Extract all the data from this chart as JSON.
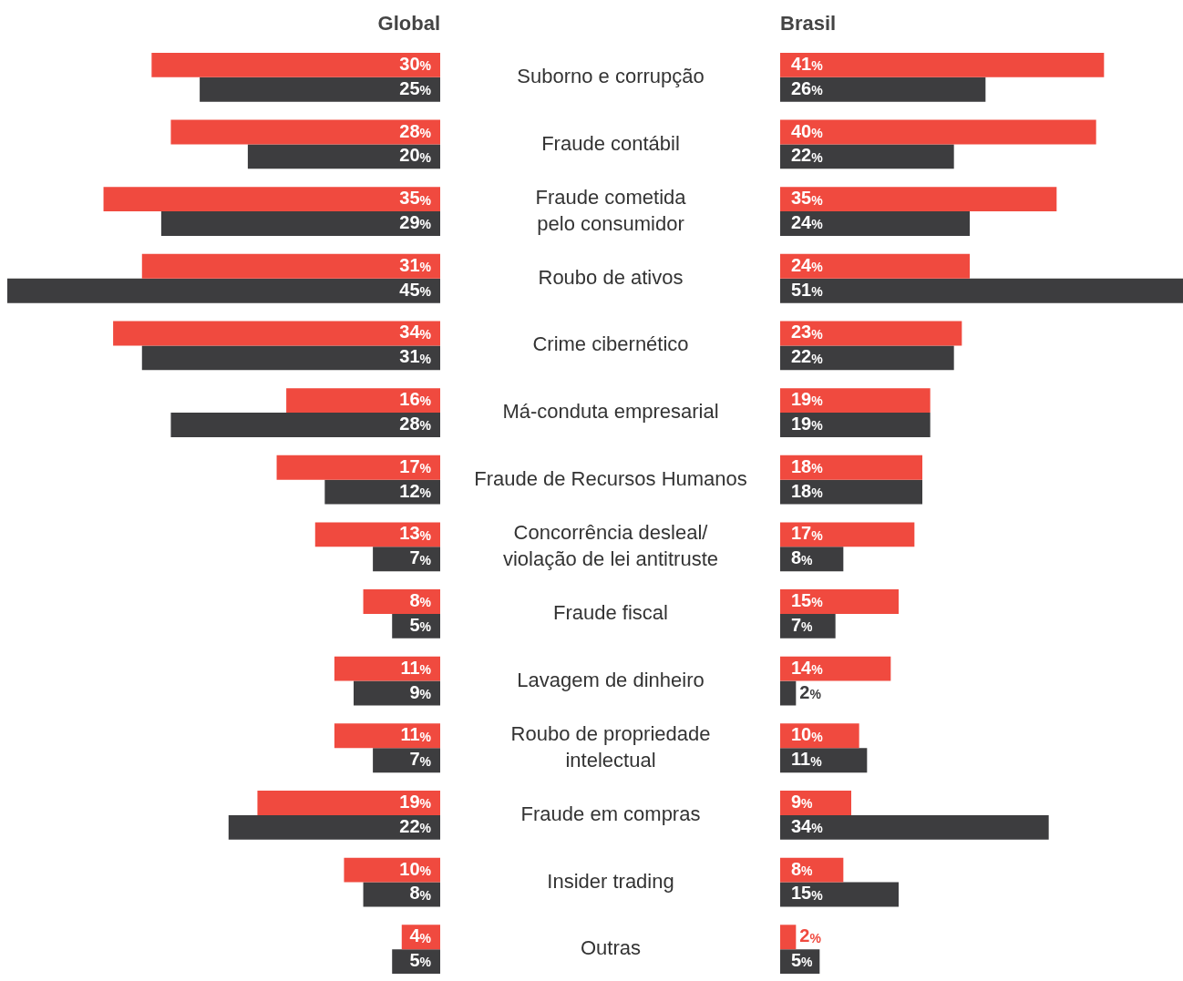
{
  "chart_data": [
    {
      "type": "bar",
      "orientation": "horizontal",
      "title": "Global",
      "tick_labels": "y",
      "xlim": [
        45,
        0
      ],
      "categories": [
        "Suborno e corrupção",
        "Fraude contábil",
        "Fraude cometida\npelo consumidor",
        "Roubo de ativos",
        "Crime cibernético",
        "Má-conduta empresarial",
        "Fraude de Recursos Humanos",
        "Concorrência desleal/\nviolação de lei antitruste",
        "Fraude fiscal",
        "Lavagem de dinheiro",
        "Roubo de propriedade\nintelectual",
        "Fraude em compras",
        "Insider trading",
        "Outras"
      ],
      "series": [
        {
          "color": "#f04a3f",
          "values": [
            30,
            28,
            35,
            31,
            34,
            16,
            17,
            13,
            8,
            11,
            11,
            19,
            10,
            4
          ],
          "value_labels": [
            "30%",
            "28%",
            "35%",
            "31%",
            "34%",
            "16%",
            "17%",
            "13%",
            "8%",
            "11%",
            "11%",
            "19%",
            "10%",
            "4%"
          ]
        },
        {
          "color": "#3d3d3f",
          "values": [
            25,
            20,
            29,
            45,
            31,
            28,
            12,
            7,
            5,
            9,
            7,
            22,
            8,
            5
          ],
          "value_labels": [
            "25%",
            "20%",
            "29%",
            "45%",
            "31%",
            "28%",
            "12%",
            "7%",
            "5%",
            "9%",
            "7%",
            "22%",
            "8%",
            "5%"
          ]
        }
      ]
    },
    {
      "type": "bar",
      "orientation": "horizontal",
      "title": "Brasil",
      "tick_labels": false,
      "xlim": [
        0,
        51
      ],
      "series": [
        {
          "color": "#f04a3f",
          "values": [
            41,
            40,
            35,
            24,
            23,
            19,
            18,
            17,
            15,
            14,
            10,
            9,
            8,
            2
          ],
          "value_labels": [
            "41%",
            "40%",
            "35%",
            "24%",
            "23%",
            "19%",
            "18%",
            "17%",
            "15%",
            "14%",
            "10%",
            "9%",
            "8%",
            "2%"
          ]
        },
        {
          "color": "#3d3d3f",
          "values": [
            26,
            22,
            24,
            51,
            22,
            19,
            18,
            8,
            7,
            2,
            11,
            34,
            15,
            5
          ],
          "value_labels": [
            "26%",
            "22%",
            "24%",
            "51%",
            "22%",
            "19%",
            "18%",
            "8%",
            "7%",
            "2%",
            "11%",
            "34%",
            "15%",
            "5%"
          ]
        }
      ]
    }
  ]
}
